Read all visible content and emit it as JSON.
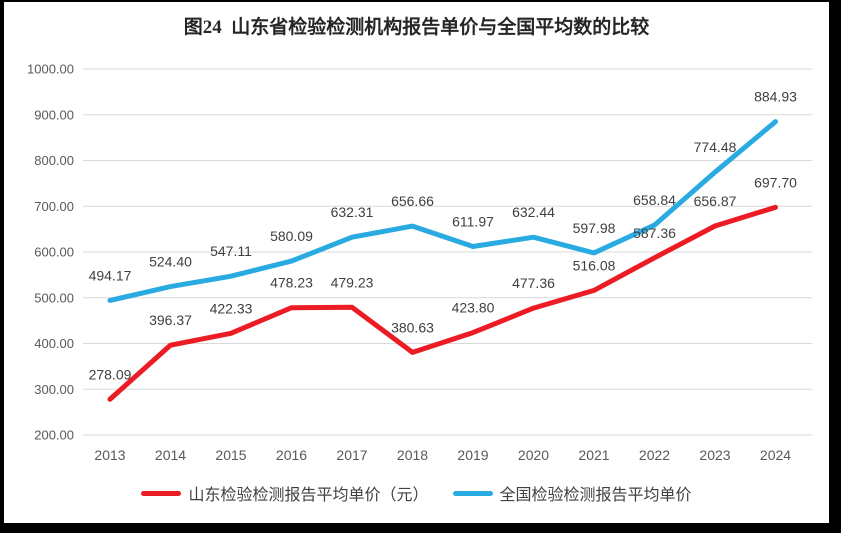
{
  "title": "图24  山东省检验检测机构报告单价与全国平均数的比较",
  "colors": {
    "shandong": "#EC1C24",
    "national": "#29ABE2",
    "grid": "#D9D9D9",
    "axis_text": "#595959",
    "data_label": "#404040",
    "title_text": "#262626",
    "frame": "#000000",
    "background": "#FFFFFF"
  },
  "chart_data": {
    "type": "line",
    "title": "图24  山东省检验检测机构报告单价与全国平均数的比较",
    "categories": [
      "2013",
      "2014",
      "2015",
      "2016",
      "2017",
      "2018",
      "2019",
      "2020",
      "2021",
      "2022",
      "2023",
      "2024"
    ],
    "series": [
      {
        "key": "shandong",
        "name": "山东检验检测报告平均单价（元）",
        "values": [
          278.09,
          396.37,
          422.33,
          478.23,
          479.23,
          380.63,
          423.8,
          477.36,
          516.08,
          587.36,
          656.87,
          697.7
        ]
      },
      {
        "key": "national",
        "name": "全国检验检测报告平均单价",
        "values": [
          494.17,
          524.4,
          547.11,
          580.09,
          632.31,
          656.66,
          611.97,
          632.44,
          597.98,
          658.84,
          774.48,
          884.93
        ]
      }
    ],
    "ylim": [
      200,
      1000
    ],
    "ytick_step": 100,
    "ytick_decimals": 2,
    "grid": "horizontal-only",
    "legend_position": "bottom",
    "data_labels": true
  }
}
